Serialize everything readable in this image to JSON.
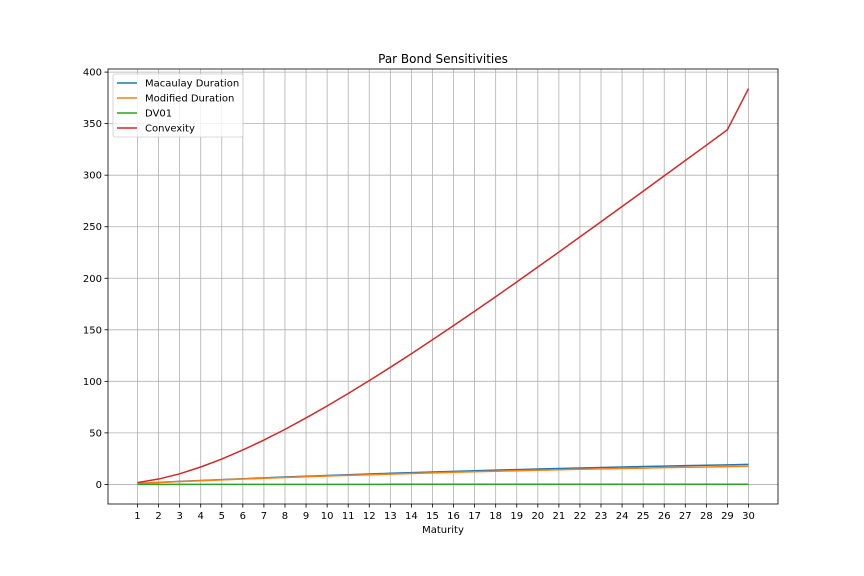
{
  "chart_data": {
    "type": "line",
    "title": "Par Bond Sensitivities",
    "xlabel": "Maturity",
    "ylabel": "",
    "x": [
      1,
      2,
      3,
      4,
      5,
      6,
      7,
      8,
      9,
      10,
      11,
      12,
      13,
      14,
      15,
      16,
      17,
      18,
      19,
      20,
      21,
      22,
      23,
      24,
      25,
      26,
      27,
      28,
      29,
      30
    ],
    "xlim": [
      -0.4,
      31.4
    ],
    "ylim": [
      -19,
      403
    ],
    "yticks": [
      0,
      50,
      100,
      150,
      200,
      250,
      300,
      350,
      400
    ],
    "grid": true,
    "legend_position": "top-left",
    "series": [
      {
        "name": "Macaulay Duration",
        "color": "#1f77b4",
        "values": [
          1.0,
          1.96,
          2.9,
          3.81,
          4.7,
          5.55,
          6.38,
          7.18,
          7.95,
          8.7,
          9.42,
          10.12,
          10.8,
          11.45,
          12.08,
          12.69,
          13.28,
          13.85,
          14.4,
          14.93,
          15.45,
          15.95,
          16.43,
          16.9,
          17.35,
          17.79,
          18.21,
          18.62,
          19.01,
          19.4
        ]
      },
      {
        "name": "Modified Duration",
        "color": "#ff7f0e",
        "values": [
          0.96,
          1.87,
          2.75,
          3.6,
          4.42,
          5.21,
          5.98,
          6.72,
          7.43,
          8.12,
          8.78,
          9.42,
          10.04,
          10.63,
          11.2,
          11.75,
          12.28,
          12.79,
          13.28,
          13.76,
          14.21,
          14.65,
          15.07,
          15.47,
          15.86,
          16.23,
          16.59,
          16.93,
          17.26,
          17.58
        ]
      },
      {
        "name": "DV01",
        "color": "#2ca02c",
        "values": [
          0.01,
          0.02,
          0.03,
          0.04,
          0.04,
          0.05,
          0.06,
          0.07,
          0.07,
          0.08,
          0.09,
          0.09,
          0.1,
          0.11,
          0.11,
          0.12,
          0.12,
          0.13,
          0.13,
          0.14,
          0.14,
          0.15,
          0.15,
          0.15,
          0.16,
          0.16,
          0.17,
          0.17,
          0.17,
          0.18
        ]
      },
      {
        "name": "Convexity",
        "color": "#d62728",
        "values": [
          1.8,
          5.2,
          10.3,
          16.9,
          24.6,
          33.4,
          43.0,
          53.4,
          64.5,
          76.1,
          88.2,
          100.7,
          113.6,
          126.8,
          140.3,
          154.0,
          168.0,
          182.1,
          196.4,
          210.9,
          225.4,
          240.1,
          254.8,
          269.6,
          284.4,
          299.3,
          314.2,
          329.1,
          344.1,
          384.0
        ]
      }
    ]
  }
}
